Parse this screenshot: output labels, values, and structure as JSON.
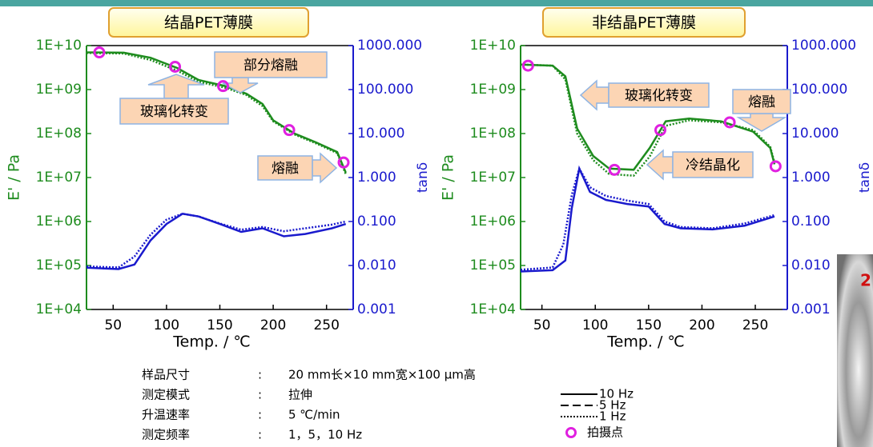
{
  "chart_data": [
    {
      "type": "line",
      "title": "结晶PET薄膜",
      "x_label": "Temp.   /  ℃",
      "y_label": "E'  / Pa",
      "y2_label": "tanδ",
      "log_y": true,
      "log_y2": true,
      "xlim": [
        25,
        275
      ],
      "xticks": [
        50,
        100,
        150,
        200,
        250
      ],
      "ylim": [
        10000,
        10000000000
      ],
      "yticks": [
        {
          "value": 10000,
          "label": "1E+04"
        },
        {
          "value": 100000,
          "label": "1E+05"
        },
        {
          "value": 1000000,
          "label": "1E+06"
        },
        {
          "value": 10000000,
          "label": "1E+07"
        },
        {
          "value": 100000000,
          "label": "1E+08"
        },
        {
          "value": 1000000000,
          "label": "1E+09"
        },
        {
          "value": 10000000000,
          "label": "1E+10"
        }
      ],
      "y2lim": [
        0.001,
        1000
      ],
      "y2ticks": [
        0.001,
        {
          "value": 0.01,
          "label": "0.010"
        },
        {
          "value": 0.1,
          "label": "0.100"
        },
        {
          "value": 1,
          "label": "1.000"
        },
        {
          "value": 10,
          "label": "10.000"
        },
        {
          "value": 100,
          "label": "100.000"
        },
        {
          "value": 1000,
          "label": "1000.000"
        }
      ],
      "series": [
        {
          "color": "#1e8c1e",
          "dash": "solid",
          "axis": "y",
          "x": [
            25,
            60,
            85,
            110,
            130,
            155,
            175,
            190,
            200,
            220,
            240,
            260,
            268
          ],
          "values": [
            7000000000,
            6900000000,
            5300000000,
            3100000000,
            1650000000,
            1200000000,
            800000000,
            470000000,
            200000000,
            100000000,
            63000000,
            38000000,
            13000000
          ]
        },
        {
          "color": "#1e8c1e",
          "dash": "dotted",
          "axis": "y",
          "x": [
            25,
            60,
            85,
            110,
            130,
            155,
            175,
            190,
            200,
            220,
            240,
            260,
            268
          ],
          "values": [
            6800000000,
            6600000000,
            4700000000,
            2700000000,
            1500000000,
            1100000000,
            750000000,
            420000000,
            190000000,
            95000000,
            60000000,
            36000000,
            12000000
          ]
        },
        {
          "color": "#1a1acd",
          "dash": "solid",
          "axis": "y2",
          "x": [
            25,
            55,
            70,
            85,
            100,
            115,
            130,
            150,
            170,
            190,
            210,
            230,
            255,
            268
          ],
          "values": [
            0.0089,
            0.0083,
            0.0105,
            0.037,
            0.088,
            0.15,
            0.13,
            0.088,
            0.058,
            0.07,
            0.046,
            0.052,
            0.07,
            0.088
          ]
        },
        {
          "color": "#1a1acd",
          "dash": "dotted",
          "axis": "y2",
          "x": [
            25,
            55,
            70,
            85,
            100,
            115,
            130,
            150,
            170,
            190,
            210,
            230,
            255,
            268
          ],
          "values": [
            0.0095,
            0.009,
            0.016,
            0.05,
            0.11,
            0.15,
            0.13,
            0.09,
            0.065,
            0.075,
            0.06,
            0.07,
            0.085,
            0.1
          ]
        }
      ],
      "markers": {
        "color": "#e020e0",
        "x": [
          37,
          108,
          153,
          215,
          266
        ],
        "values": [
          7000000000,
          3300000000,
          1200000000,
          120000000,
          22000000
        ]
      },
      "annotations": [
        "部分熔融",
        "玻璃化转变",
        "熔融"
      ]
    },
    {
      "type": "line",
      "title": "非结晶PET薄膜",
      "x_label": "Temp.   /  ℃",
      "y_label": "E'  / Pa",
      "y2_label": "tanδ",
      "log_y": true,
      "log_y2": true,
      "xlim": [
        30,
        280
      ],
      "xticks": [
        50,
        100,
        150,
        200,
        250
      ],
      "ylim": [
        10000,
        10000000000
      ],
      "yticks": [
        {
          "value": 10000,
          "label": "1E+04"
        },
        {
          "value": 100000,
          "label": "1E+05"
        },
        {
          "value": 1000000,
          "label": "1E+06"
        },
        {
          "value": 10000000,
          "label": "1E+07"
        },
        {
          "value": 100000000,
          "label": "1E+08"
        },
        {
          "value": 1000000000,
          "label": "1E+09"
        },
        {
          "value": 10000000000,
          "label": "1E+10"
        }
      ],
      "y2lim": [
        0.001,
        1000
      ],
      "y2ticks": [
        0.001,
        {
          "value": 0.01,
          "label": "0.010"
        },
        {
          "value": 0.1,
          "label": "0.100"
        },
        {
          "value": 1,
          "label": "1.000"
        },
        {
          "value": 10,
          "label": "10.000"
        },
        {
          "value": 100,
          "label": "100.000"
        },
        {
          "value": 1000,
          "label": "1000.000"
        }
      ],
      "series": [
        {
          "color": "#1e8c1e",
          "dash": "solid",
          "axis": "y",
          "x": [
            30,
            60,
            72,
            83,
            98,
            113,
            136,
            151,
            166,
            188,
            218,
            248,
            264,
            268
          ],
          "values": [
            3700000000,
            3500000000,
            2000000000,
            130000000,
            31000000,
            16000000,
            15000000,
            47000000,
            190000000,
            220000000,
            190000000,
            110000000,
            47000000,
            20000000
          ]
        },
        {
          "color": "#1e8c1e",
          "dash": "dotted",
          "axis": "y",
          "x": [
            30,
            60,
            72,
            83,
            98,
            113,
            136,
            151,
            166,
            188,
            218,
            248,
            264,
            268
          ],
          "values": [
            3700000000,
            3500000000,
            1700000000,
            100000000,
            25000000,
            12000000,
            11000000,
            30000000,
            150000000,
            200000000,
            180000000,
            120000000,
            50000000,
            22000000
          ]
        },
        {
          "color": "#1a1acd",
          "dash": "solid",
          "axis": "y2",
          "x": [
            30,
            60,
            72,
            78,
            85,
            95,
            110,
            130,
            150,
            165,
            180,
            210,
            240,
            268
          ],
          "values": [
            0.0073,
            0.0078,
            0.013,
            0.2,
            1.6,
            0.47,
            0.31,
            0.25,
            0.22,
            0.088,
            0.07,
            0.066,
            0.08,
            0.13
          ]
        },
        {
          "color": "#1a1acd",
          "dash": "dotted",
          "axis": "y2",
          "x": [
            30,
            60,
            70,
            78,
            85,
            95,
            110,
            130,
            150,
            165,
            180,
            210,
            240,
            268
          ],
          "values": [
            0.008,
            0.009,
            0.03,
            0.4,
            1.6,
            0.6,
            0.38,
            0.3,
            0.25,
            0.1,
            0.075,
            0.07,
            0.09,
            0.14
          ]
        }
      ],
      "markers": {
        "color": "#e020e0",
        "x": [
          37,
          118,
          161,
          226,
          269
        ],
        "values": [
          3500000000,
          15000000,
          120000000,
          180000000,
          18000000
        ]
      },
      "annotations": [
        "玻璃化转变",
        "熔融",
        "冷结晶化"
      ]
    }
  ],
  "legend": [
    {
      "label": "10 Hz",
      "dash": "solid"
    },
    {
      "label": "5 Hz",
      "dash": "dashed"
    },
    {
      "label": "1 Hz",
      "dash": "dotted"
    },
    {
      "label": "拍摄点",
      "dash": "marker"
    }
  ],
  "conditions": [
    [
      "样品尺寸",
      ":",
      "20 mm长×10 mm宽×100 μm高"
    ],
    [
      "测定模式",
      ":",
      "拉伸"
    ],
    [
      "升温速率",
      ":",
      "5 ℃/min"
    ],
    [
      "测定频率",
      ":",
      "1，5，10 Hz"
    ]
  ],
  "photo_label": "2"
}
